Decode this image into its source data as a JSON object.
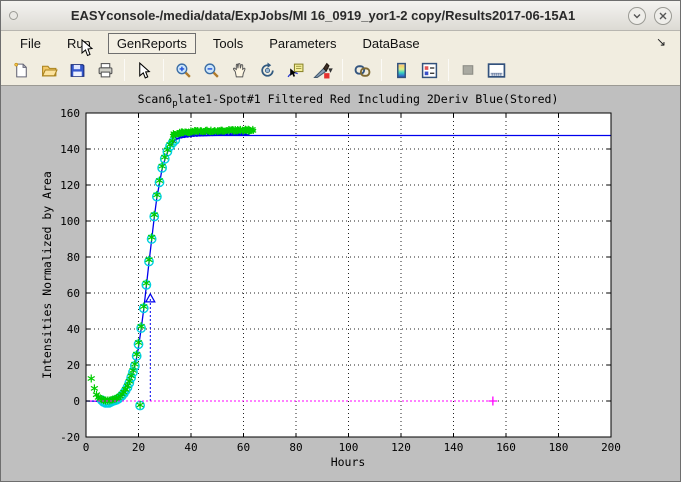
{
  "window": {
    "title": "EASYconsole-/media/data/ExpJobs/MI 16_0919_yor1-2 copy/Results2017-06-15A1",
    "controls": [
      "window-menu",
      "minimize",
      "close"
    ]
  },
  "menu": {
    "items": [
      "File",
      "Run",
      "GenReports",
      "Tools",
      "Parameters",
      "DataBase"
    ],
    "hovered_item": "GenReports",
    "overflow_arrow": "↘"
  },
  "toolbar": {
    "icons": [
      "new-document-icon",
      "open-folder-icon",
      "save-icon",
      "print-icon",
      "pointer-icon",
      "zoom-in-icon",
      "zoom-out-icon",
      "pan-hand-icon",
      "rotate-3d-icon",
      "data-cursor-icon",
      "brush-icon",
      "brush-dropdown-caret",
      "link-plots-icon",
      "colorbar-icon",
      "legend-icon",
      "disabled-square-icon",
      "dock-figure-icon"
    ]
  },
  "plot": {
    "title_pre": "Scan6",
    "title_sub": "p",
    "title_rest": "late1-Spot#1 Filtered Red Including 2Deriv Blue(Stored)",
    "xlabel": "Hours",
    "ylabel": "Intensities Normalized by Area"
  },
  "chart_data": {
    "type": "scatter",
    "title": "Scan6_plate1-Spot#1 Filtered Red Including 2Deriv Blue(Stored)",
    "xlabel": "Hours",
    "ylabel": "Intensities Normalized by Area",
    "xlim": [
      0,
      200
    ],
    "ylim": [
      -20,
      160
    ],
    "x_ticks": [
      0,
      20,
      40,
      60,
      80,
      100,
      120,
      140,
      160,
      180,
      200
    ],
    "y_ticks": [
      -20,
      0,
      20,
      40,
      60,
      80,
      100,
      120,
      140,
      160
    ],
    "grid": true,
    "colors": {
      "line": "#0000ee",
      "stars": "#00cc00",
      "circles": "#00d0e0",
      "baseline": "#ff00ff",
      "grid": "#222222"
    },
    "series": [
      {
        "name": "fit-line",
        "kind": "line",
        "color": "#0000ee",
        "width": 1.3,
        "points": [
          [
            0,
            0
          ],
          [
            4,
            -0.1
          ],
          [
            6,
            -0.4
          ],
          [
            8,
            -0.6
          ],
          [
            9.5,
            -0.4
          ],
          [
            11,
            0.2
          ],
          [
            12,
            0.9
          ],
          [
            13,
            1.8
          ],
          [
            14,
            3.2
          ],
          [
            15,
            5.2
          ],
          [
            16,
            8
          ],
          [
            17,
            12
          ],
          [
            18,
            16
          ],
          [
            19,
            22
          ],
          [
            20,
            30
          ],
          [
            21,
            40
          ],
          [
            22,
            51
          ],
          [
            23,
            64
          ],
          [
            24,
            77
          ],
          [
            25,
            89.5
          ],
          [
            26,
            102
          ],
          [
            27,
            113
          ],
          [
            28,
            121
          ],
          [
            29,
            129
          ],
          [
            30,
            134
          ],
          [
            31,
            138
          ],
          [
            32,
            141
          ],
          [
            33,
            143
          ],
          [
            34,
            144.8
          ],
          [
            35,
            145.8
          ],
          [
            36,
            146.4
          ],
          [
            37,
            146.8
          ],
          [
            38,
            147
          ],
          [
            40,
            147.3
          ],
          [
            44,
            147.4
          ],
          [
            50,
            147.5
          ],
          [
            60,
            147.5
          ],
          [
            200,
            147.5
          ]
        ]
      },
      {
        "name": "filtered-red-circles",
        "kind": "scatter",
        "marker": "circle",
        "color": "#00d0e0",
        "r": 4.2,
        "points": [
          [
            6,
            0.5
          ],
          [
            6.7,
            -0.5
          ],
          [
            7.4,
            -1
          ],
          [
            8.1,
            -1
          ],
          [
            8.8,
            -1
          ],
          [
            9.5,
            -0.5
          ],
          [
            10.2,
            0
          ],
          [
            10.9,
            0.3
          ],
          [
            11.6,
            0.7
          ],
          [
            12.3,
            1.2
          ],
          [
            13,
            2
          ],
          [
            13.7,
            3
          ],
          [
            14.4,
            4.2
          ],
          [
            15.1,
            5.8
          ],
          [
            15.8,
            7.6
          ],
          [
            16.5,
            10
          ],
          [
            17.2,
            13
          ],
          [
            17.9,
            16
          ],
          [
            18.6,
            19.5
          ],
          [
            19.3,
            25
          ],
          [
            20,
            31.5
          ],
          [
            20.6,
            -2.5
          ],
          [
            21,
            40.5
          ],
          [
            22,
            51.5
          ],
          [
            23,
            64.5
          ],
          [
            24,
            77.5
          ],
          [
            25,
            90
          ],
          [
            26,
            102.5
          ],
          [
            27,
            113.5
          ],
          [
            28,
            121.5
          ],
          [
            29,
            129.5
          ],
          [
            30,
            134.5
          ],
          [
            31,
            138.5
          ],
          [
            32,
            141.5
          ],
          [
            33,
            143.5
          ],
          [
            34,
            145
          ]
        ]
      },
      {
        "name": "plateau-circles",
        "kind": "scatter",
        "marker": "circle",
        "color": "#0000ee",
        "r": 2.6,
        "points": [
          [
            35,
            147.2
          ],
          [
            36.2,
            147.6
          ],
          [
            37.4,
            147.9
          ],
          [
            38.6,
            148.1
          ],
          [
            39.8,
            148.3
          ],
          [
            41,
            148.5
          ],
          [
            42.2,
            148.6
          ],
          [
            43.4,
            148.7
          ],
          [
            44.6,
            148.8
          ],
          [
            45.8,
            148.9
          ],
          [
            47,
            149
          ],
          [
            48.2,
            149
          ],
          [
            49.4,
            149.1
          ],
          [
            50.6,
            149.1
          ],
          [
            51.8,
            149.2
          ],
          [
            53,
            149.2
          ],
          [
            54.2,
            149.2
          ],
          [
            55.4,
            149.3
          ],
          [
            56.6,
            149.3
          ],
          [
            57.8,
            149.3
          ],
          [
            59,
            149.3
          ],
          [
            60.2,
            149.3
          ],
          [
            61.4,
            149.3
          ]
        ]
      },
      {
        "name": "raw-intensity-stars",
        "kind": "scatter",
        "marker": "asterisk",
        "color": "#00cc00",
        "r": 4,
        "points": [
          [
            2,
            12.5
          ],
          [
            3.2,
            7
          ],
          [
            4,
            3.5
          ],
          [
            4.7,
            2
          ],
          [
            5.4,
            1.5
          ],
          [
            6,
            1
          ],
          [
            6.7,
            0.5
          ],
          [
            7.4,
            0.3
          ],
          [
            8.1,
            0.3
          ],
          [
            8.8,
            0.3
          ],
          [
            9.5,
            0.5
          ],
          [
            10.2,
            0.8
          ],
          [
            11,
            1.2
          ],
          [
            11.6,
            1.5
          ],
          [
            12.3,
            2
          ],
          [
            13,
            2.8
          ],
          [
            13.7,
            3.8
          ],
          [
            14.4,
            5
          ],
          [
            15.1,
            6.5
          ],
          [
            15.8,
            8.5
          ],
          [
            16.5,
            11
          ],
          [
            17.2,
            14
          ],
          [
            17.9,
            17
          ],
          [
            18.6,
            20.5
          ],
          [
            19.3,
            26
          ],
          [
            20,
            32.5
          ],
          [
            20.6,
            -2.2
          ],
          [
            21,
            41.5
          ],
          [
            22,
            52.5
          ],
          [
            23,
            65.5
          ],
          [
            24,
            78.5
          ],
          [
            25,
            91
          ],
          [
            26,
            103.5
          ],
          [
            27,
            114.5
          ],
          [
            28,
            122.5
          ],
          [
            29,
            130.5
          ],
          [
            30,
            135.5
          ],
          [
            31,
            139.5
          ],
          [
            32,
            142.5
          ],
          [
            33,
            144.5
          ]
        ]
      },
      {
        "name": "star-plateau-cluster",
        "kind": "cluster",
        "marker": "asterisk",
        "color": "#00cc00",
        "r": 3.2,
        "cluster": {
          "x_start": 33,
          "x_end": 63.5,
          "count": 130,
          "base": 148,
          "rise": 2.5,
          "tau": 7,
          "jitter": 1.4
        }
      },
      {
        "name": "inflection-marker",
        "kind": "marker-line",
        "marker": "triangle",
        "color": "#0000ee",
        "point": [
          24.5,
          57
        ],
        "dropline_from": 0
      },
      {
        "name": "zero-baseline",
        "kind": "dotted-line",
        "color": "#ff00ff",
        "points": [
          [
            0,
            0
          ],
          [
            155,
            0
          ]
        ],
        "end_marker": "plus",
        "end_point": [
          155,
          0
        ]
      }
    ]
  }
}
